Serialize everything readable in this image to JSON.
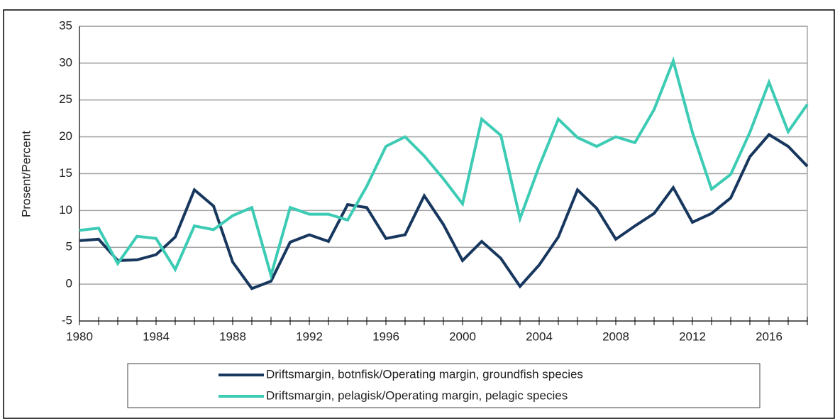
{
  "chart_data": {
    "type": "line",
    "ylabel": "Prosent/Percent",
    "x": [
      1980,
      1981,
      1982,
      1983,
      1984,
      1985,
      1986,
      1987,
      1988,
      1989,
      1990,
      1991,
      1992,
      1993,
      1994,
      1995,
      1996,
      1997,
      1998,
      1999,
      2000,
      2001,
      2002,
      2003,
      2004,
      2005,
      2006,
      2007,
      2008,
      2009,
      2010,
      2011,
      2012,
      2013,
      2014,
      2015,
      2016,
      2017,
      2018
    ],
    "series": [
      {
        "name": "Driftsmargin, botnfisk/Operating margin, groundfish species",
        "color": "#17375e",
        "values": [
          5.9,
          6.1,
          3.2,
          3.3,
          4.0,
          6.4,
          12.8,
          10.6,
          3.0,
          -0.6,
          0.4,
          5.7,
          6.7,
          5.8,
          10.8,
          10.4,
          6.2,
          6.7,
          12.0,
          8.1,
          3.2,
          5.8,
          3.5,
          -0.3,
          2.6,
          6.4,
          12.8,
          10.3,
          6.1,
          7.9,
          9.6,
          13.1,
          8.4,
          9.6,
          11.7,
          17.3,
          20.3,
          18.7,
          16.0
        ]
      },
      {
        "name": "Driftsmargin, pelagisk/Operating margin, pelagic species",
        "color": "#3ccbb4",
        "values": [
          7.3,
          7.6,
          2.8,
          6.5,
          6.2,
          2.0,
          7.9,
          7.4,
          9.3,
          10.4,
          1.2,
          10.4,
          9.5,
          9.5,
          8.7,
          13.3,
          18.7,
          20.0,
          17.4,
          14.3,
          10.9,
          22.4,
          20.2,
          8.9,
          16.0,
          22.4,
          19.9,
          18.7,
          20.0,
          19.2,
          23.7,
          30.3,
          20.6,
          12.9,
          14.9,
          20.6,
          27.4,
          20.7,
          24.4
        ]
      }
    ],
    "xlim": [
      1980,
      2018
    ],
    "xticks": [
      1980,
      1984,
      1988,
      1992,
      1996,
      2000,
      2004,
      2008,
      2012,
      2016
    ],
    "ylim": [
      -5,
      35
    ],
    "yticks": [
      -5,
      0,
      5,
      10,
      15,
      20,
      25,
      30,
      35
    ],
    "grid": true
  }
}
